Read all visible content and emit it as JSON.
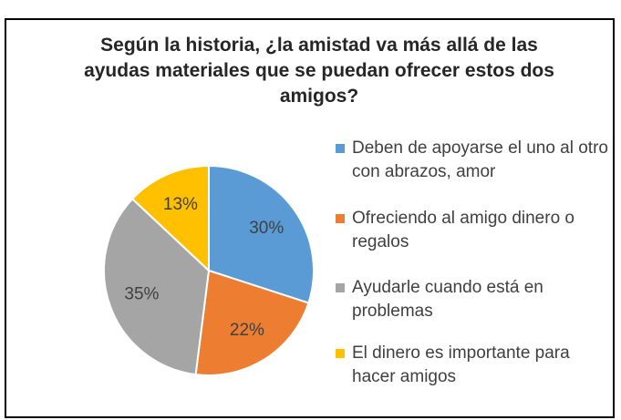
{
  "chart_data": {
    "type": "pie",
    "title": "Según la historia, ¿la amistad va más allá de las ayudas materiales que se puedan ofrecer estos dos amigos?",
    "categories": [
      "Deben de apoyarse el uno al otro con abrazos, amor",
      "Ofreciendo al amigo dinero o regalos",
      "Ayudarle cuando está en problemas",
      "El dinero es importante para hacer amigos"
    ],
    "values": [
      30,
      22,
      35,
      13
    ],
    "value_labels": [
      "30%",
      "22%",
      "35%",
      "13%"
    ],
    "colors": [
      "#5b9bd5",
      "#ed7d31",
      "#a5a5a5",
      "#ffc000"
    ],
    "legend": "right"
  }
}
